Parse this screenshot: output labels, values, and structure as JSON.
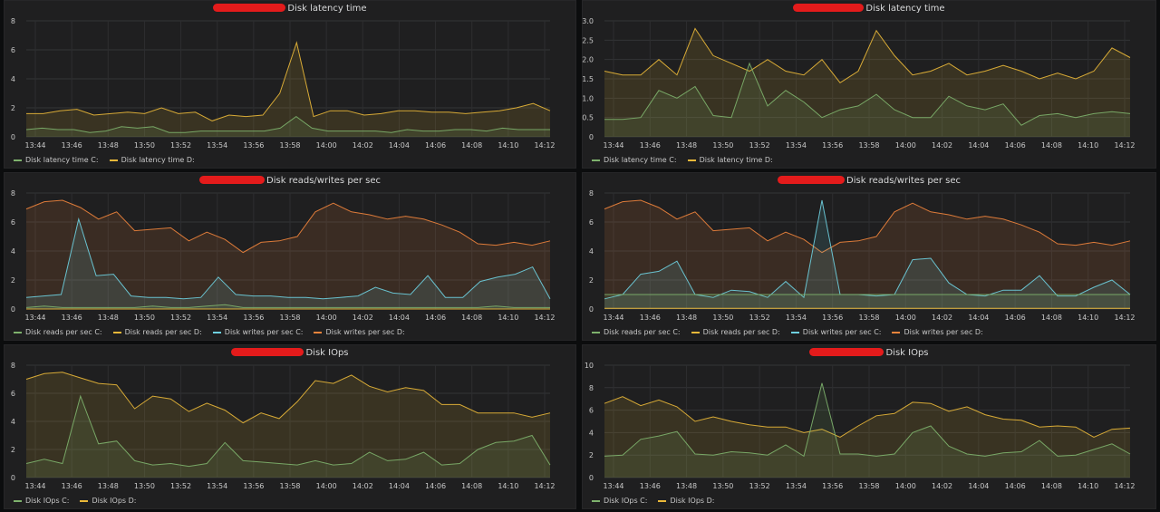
{
  "panels": [
    {
      "title": "Disk latency time",
      "legend": [
        "Disk latency time C:",
        "Disk latency time D:"
      ]
    },
    {
      "title": "Disk latency time",
      "legend": [
        "Disk latency time C:",
        "Disk latency time D:"
      ]
    },
    {
      "title": "Disk reads/writes per sec",
      "legend": [
        "Disk reads per sec C:",
        "Disk reads per sec D:",
        "Disk writes per sec C:",
        "Disk writes per sec D:"
      ]
    },
    {
      "title": "Disk reads/writes per sec",
      "legend": [
        "Disk reads per sec C:",
        "Disk reads per sec D:",
        "Disk writes per sec C:",
        "Disk writes per sec D:"
      ]
    },
    {
      "title": "Disk IOps",
      "legend": [
        "Disk IOps C:",
        "Disk IOps D:"
      ]
    },
    {
      "title": "Disk IOps",
      "legend": [
        "Disk IOps C:",
        "Disk IOps D:"
      ]
    }
  ],
  "colors": {
    "green": "#7eb26d",
    "yellow": "#eab839",
    "blue": "#6ed0e0",
    "orange": "#ef843c"
  },
  "chart_data": [
    {
      "type": "area",
      "title": "Disk latency time",
      "ylim": [
        0,
        8
      ],
      "yticks": [
        "0",
        "2",
        "4",
        "6",
        "8"
      ],
      "xticks": [
        "13:44",
        "13:46",
        "13:48",
        "13:50",
        "13:52",
        "13:54",
        "13:56",
        "13:58",
        "14:00",
        "14:02",
        "14:04",
        "14:06",
        "14:08",
        "14:10",
        "14:12"
      ],
      "grid": true,
      "legend_position": "bottom-left",
      "series": [
        {
          "name": "Disk latency time C:",
          "color": "green",
          "values": [
            0.5,
            0.6,
            0.5,
            0.5,
            0.3,
            0.4,
            0.7,
            0.6,
            0.7,
            0.3,
            0.3,
            0.4,
            0.4,
            0.4,
            0.4,
            0.4,
            0.6,
            1.4,
            0.6,
            0.4,
            0.4,
            0.4,
            0.4,
            0.3,
            0.5,
            0.4,
            0.4,
            0.5,
            0.5,
            0.4,
            0.6,
            0.5,
            0.5,
            0.5
          ]
        },
        {
          "name": "Disk latency time D:",
          "color": "yellow",
          "values": [
            1.6,
            1.6,
            1.8,
            1.9,
            1.5,
            1.6,
            1.7,
            1.6,
            2.0,
            1.6,
            1.7,
            1.1,
            1.5,
            1.4,
            1.5,
            3.0,
            6.5,
            1.4,
            1.8,
            1.8,
            1.5,
            1.6,
            1.8,
            1.8,
            1.7,
            1.7,
            1.6,
            1.7,
            1.8,
            2.0,
            2.3,
            1.8
          ]
        }
      ]
    },
    {
      "type": "area",
      "title": "Disk latency time",
      "ylim": [
        0,
        3
      ],
      "yticks": [
        "0",
        "0.5",
        "1.0",
        "1.5",
        "2.0",
        "2.5",
        "3.0"
      ],
      "xticks": [
        "13:44",
        "13:46",
        "13:48",
        "13:50",
        "13:52",
        "13:54",
        "13:56",
        "13:58",
        "14:00",
        "14:02",
        "14:04",
        "14:06",
        "14:08",
        "14:10",
        "14:12"
      ],
      "grid": true,
      "legend_position": "bottom-left",
      "series": [
        {
          "name": "Disk latency time C:",
          "color": "green",
          "values": [
            0.45,
            0.45,
            0.5,
            1.2,
            1.0,
            1.3,
            0.55,
            0.5,
            1.9,
            0.8,
            1.2,
            0.9,
            0.5,
            0.7,
            0.8,
            1.1,
            0.7,
            0.5,
            0.5,
            1.05,
            0.8,
            0.7,
            0.85,
            0.3,
            0.55,
            0.6,
            0.5,
            0.6,
            0.65,
            0.6
          ]
        },
        {
          "name": "Disk latency time D:",
          "color": "yellow",
          "values": [
            1.7,
            1.6,
            1.6,
            2.0,
            1.6,
            2.8,
            2.1,
            1.9,
            1.7,
            2.0,
            1.7,
            1.6,
            2.0,
            1.4,
            1.7,
            2.75,
            2.1,
            1.6,
            1.7,
            1.9,
            1.6,
            1.7,
            1.85,
            1.7,
            1.5,
            1.65,
            1.5,
            1.7,
            2.3,
            2.05
          ]
        }
      ]
    },
    {
      "type": "area",
      "title": "Disk reads/writes per sec",
      "ylim": [
        0,
        8
      ],
      "yticks": [
        "0",
        "2",
        "4",
        "6",
        "8"
      ],
      "xticks": [
        "13:44",
        "13:46",
        "13:48",
        "13:50",
        "13:52",
        "13:54",
        "13:56",
        "13:58",
        "14:00",
        "14:02",
        "14:04",
        "14:06",
        "14:08",
        "14:10",
        "14:12"
      ],
      "grid": true,
      "legend_position": "bottom-left",
      "series": [
        {
          "name": "Disk reads per sec C:",
          "color": "green",
          "values": [
            0.1,
            0.2,
            0.1,
            0.1,
            0.1,
            0.1,
            0.1,
            0.2,
            0.1,
            0.1,
            0.2,
            0.3,
            0.1,
            0.1,
            0.1,
            0.1,
            0.1,
            0.1,
            0.1,
            0.1,
            0.1,
            0.1,
            0.1,
            0.1,
            0.1,
            0.1,
            0.2,
            0.1,
            0.1,
            0.1
          ]
        },
        {
          "name": "Disk reads per sec D:",
          "color": "yellow",
          "values": [
            0,
            0,
            0,
            0,
            0,
            0,
            0,
            0,
            0,
            0,
            0,
            0,
            0,
            0,
            0,
            0,
            0,
            0,
            0,
            0,
            0,
            0,
            0,
            0,
            0,
            0,
            0,
            0,
            0,
            0
          ]
        },
        {
          "name": "Disk writes per sec C:",
          "color": "blue",
          "values": [
            0.8,
            0.9,
            1.0,
            6.2,
            2.3,
            2.4,
            0.9,
            0.8,
            0.8,
            0.7,
            0.8,
            2.2,
            1.0,
            0.9,
            0.9,
            0.8,
            0.8,
            0.7,
            0.8,
            0.9,
            1.5,
            1.1,
            1.0,
            2.3,
            0.8,
            0.8,
            1.9,
            2.2,
            2.4,
            2.9,
            0.7
          ]
        },
        {
          "name": "Disk writes per sec D:",
          "color": "orange",
          "values": [
            6.9,
            7.4,
            7.5,
            7.0,
            6.2,
            6.7,
            5.4,
            5.5,
            5.6,
            4.7,
            5.3,
            4.8,
            3.9,
            4.6,
            4.7,
            5.0,
            6.7,
            7.3,
            6.7,
            6.5,
            6.2,
            6.4,
            6.2,
            5.8,
            5.3,
            4.5,
            4.4,
            4.6,
            4.4,
            4.7
          ]
        }
      ]
    },
    {
      "type": "area",
      "title": "Disk reads/writes per sec",
      "ylim": [
        0,
        8
      ],
      "yticks": [
        "0",
        "2",
        "4",
        "6",
        "8"
      ],
      "xticks": [
        "13:44",
        "13:46",
        "13:48",
        "13:50",
        "13:52",
        "13:54",
        "13:56",
        "13:58",
        "14:00",
        "14:02",
        "14:04",
        "14:06",
        "14:08",
        "14:10",
        "14:12"
      ],
      "grid": true,
      "legend_position": "bottom-left",
      "series": [
        {
          "name": "Disk reads per sec C:",
          "color": "green",
          "values": [
            1.0,
            1.0,
            1.0,
            1.0,
            1.0,
            1.0,
            1.0,
            1.0,
            1.0,
            1.0,
            1.0,
            1.0,
            1.0,
            1.0,
            1.0,
            1.0,
            1.0,
            1.0,
            1.0,
            1.0,
            1.0,
            1.0,
            1.0,
            1.0,
            1.0,
            1.0,
            1.0,
            1.0,
            1.0,
            1.0
          ]
        },
        {
          "name": "Disk reads per sec D:",
          "color": "yellow",
          "values": [
            0.05,
            0.05,
            0.05,
            0.05,
            0.05,
            0.05,
            0.05,
            0.05,
            0.05,
            0.05,
            0.05,
            0.05,
            0.05,
            0.05,
            0.05,
            0.05,
            0.05,
            0.05,
            0.05,
            0.05,
            0.05,
            0.05,
            0.05,
            0.05,
            0.05,
            0.05,
            0.05,
            0.05,
            0.05,
            0.05
          ]
        },
        {
          "name": "Disk writes per sec C:",
          "color": "blue",
          "values": [
            0.7,
            1.0,
            2.4,
            2.6,
            3.3,
            1.0,
            0.8,
            1.3,
            1.2,
            0.8,
            1.9,
            0.8,
            7.5,
            1.0,
            1.0,
            0.9,
            1.0,
            3.4,
            3.5,
            1.8,
            1.0,
            0.9,
            1.3,
            1.3,
            2.3,
            0.9,
            0.9,
            1.5,
            2.0,
            1.0
          ]
        },
        {
          "name": "Disk writes per sec D:",
          "color": "orange",
          "values": [
            6.9,
            7.4,
            7.5,
            7.0,
            6.2,
            6.7,
            5.4,
            5.5,
            5.6,
            4.7,
            5.3,
            4.8,
            3.9,
            4.6,
            4.7,
            5.0,
            6.7,
            7.3,
            6.7,
            6.5,
            6.2,
            6.4,
            6.2,
            5.8,
            5.3,
            4.5,
            4.4,
            4.6,
            4.4,
            4.7
          ]
        }
      ]
    },
    {
      "type": "area",
      "title": "Disk IOps",
      "ylim": [
        0,
        8
      ],
      "yticks": [
        "0",
        "2",
        "4",
        "6",
        "8"
      ],
      "xticks": [
        "13:44",
        "13:46",
        "13:48",
        "13:50",
        "13:52",
        "13:54",
        "13:56",
        "13:58",
        "14:00",
        "14:02",
        "14:04",
        "14:06",
        "14:08",
        "14:10",
        "14:12"
      ],
      "grid": true,
      "legend_position": "bottom-left",
      "series": [
        {
          "name": "Disk IOps C:",
          "color": "green",
          "values": [
            1.0,
            1.3,
            1.0,
            5.8,
            2.4,
            2.6,
            1.2,
            0.9,
            1.0,
            0.8,
            1.0,
            2.5,
            1.2,
            1.1,
            1.0,
            0.9,
            1.2,
            0.9,
            1.0,
            1.8,
            1.2,
            1.3,
            1.8,
            0.9,
            1.0,
            2.0,
            2.5,
            2.6,
            3.0,
            0.9
          ]
        },
        {
          "name": "Disk IOps D:",
          "color": "yellow",
          "values": [
            7.0,
            7.4,
            7.5,
            7.1,
            6.7,
            6.6,
            4.9,
            5.8,
            5.6,
            4.7,
            5.3,
            4.8,
            3.9,
            4.6,
            4.2,
            5.4,
            6.9,
            6.7,
            7.3,
            6.5,
            6.1,
            6.4,
            6.2,
            5.2,
            5.2,
            4.6,
            4.6,
            4.6,
            4.3,
            4.6
          ]
        }
      ]
    },
    {
      "type": "area",
      "title": "Disk IOps",
      "ylim": [
        0,
        10
      ],
      "yticks": [
        "0",
        "2",
        "4",
        "6",
        "8",
        "10"
      ],
      "xticks": [
        "13:44",
        "13:46",
        "13:48",
        "13:50",
        "13:52",
        "13:54",
        "13:56",
        "13:58",
        "14:00",
        "14:02",
        "14:04",
        "14:06",
        "14:08",
        "14:10",
        "14:12"
      ],
      "grid": true,
      "legend_position": "bottom-left",
      "series": [
        {
          "name": "Disk IOps C:",
          "color": "green",
          "values": [
            1.9,
            2.0,
            3.4,
            3.7,
            4.1,
            2.1,
            2.0,
            2.3,
            2.2,
            2.0,
            2.9,
            1.9,
            8.4,
            2.1,
            2.1,
            1.9,
            2.1,
            4.0,
            4.6,
            2.8,
            2.1,
            1.9,
            2.2,
            2.3,
            3.3,
            1.9,
            2.0,
            2.5,
            3.0,
            2.1
          ]
        },
        {
          "name": "Disk IOps D:",
          "color": "yellow",
          "values": [
            6.6,
            7.2,
            6.4,
            6.9,
            6.3,
            5.0,
            5.4,
            5.0,
            4.7,
            4.5,
            4.5,
            4.0,
            4.3,
            3.6,
            4.6,
            5.5,
            5.7,
            6.7,
            6.6,
            5.9,
            6.3,
            5.6,
            5.2,
            5.1,
            4.5,
            4.6,
            4.5,
            3.6,
            4.3,
            4.4
          ]
        }
      ]
    }
  ]
}
